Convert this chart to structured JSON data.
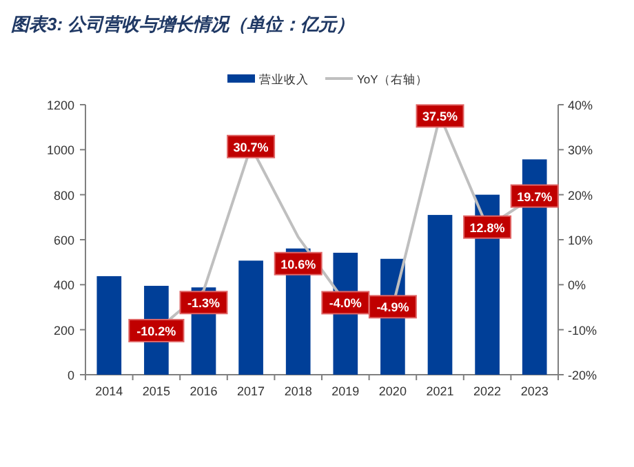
{
  "chart_data": {
    "type": "bar",
    "title": "图表3: 公司营收与增长情况（单位：亿元）",
    "categories": [
      "2014",
      "2015",
      "2016",
      "2017",
      "2018",
      "2019",
      "2020",
      "2021",
      "2022",
      "2023"
    ],
    "series": [
      {
        "name": "营业收入",
        "color": "#003f98",
        "values": [
          438,
          395,
          388,
          507,
          561,
          542,
          515,
          710,
          800,
          957
        ]
      },
      {
        "name": "YoY（右轴）",
        "type": "line",
        "axis": "y2",
        "color": "#bfbfbf",
        "values": [
          null,
          -10.2,
          -1.3,
          30.7,
          10.6,
          -4.0,
          -4.9,
          37.5,
          12.8,
          19.7
        ],
        "value_labels": [
          null,
          "-10.2%",
          "-1.3%",
          "30.7%",
          "10.6%",
          "-4.0%",
          "-4.9%",
          "37.5%",
          "12.8%",
          "19.7%"
        ]
      }
    ],
    "ylim": [
      0,
      1200
    ],
    "yticks": [
      0,
      200,
      400,
      600,
      800,
      1000,
      1200
    ],
    "y2lim": [
      -20,
      40
    ],
    "y2ticks": [
      {
        "value": -20,
        "label": "-20%"
      },
      {
        "value": -10,
        "label": "-10%"
      },
      {
        "value": 0,
        "label": "0%"
      },
      {
        "value": 10,
        "label": "10%"
      },
      {
        "value": 20,
        "label": "20%"
      },
      {
        "value": 30,
        "label": "30%"
      },
      {
        "value": 40,
        "label": "40%"
      }
    ],
    "legend": "top",
    "grid": false
  }
}
